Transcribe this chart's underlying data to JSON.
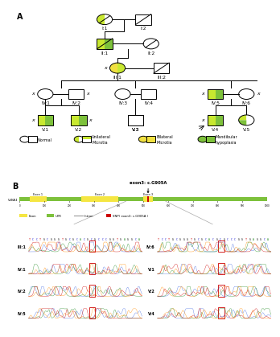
{
  "col_normal": "#ffffff",
  "col_unilateral": "#c8e830",
  "col_bilateral": "#f0e040",
  "col_mandibular": "#7dc13b",
  "ec": "black",
  "lw": 0.7,
  "gene_bar_color": "#7dc13b",
  "exon_color": "#f5e642",
  "snp_color": "#cc0000",
  "intron_color": "#aaaaaa",
  "annotation_text": "exon3: c.G905A",
  "background": "#ffffff",
  "seq_str": "TCCTGCGGGTGCGCACGCGCCCGGTGAGGCA",
  "labels_left": [
    "III:1",
    "IV:1",
    "IV:2",
    "IV:5"
  ],
  "labels_right": [
    "IV:6",
    "V:1",
    "V:2",
    "V:4"
  ]
}
